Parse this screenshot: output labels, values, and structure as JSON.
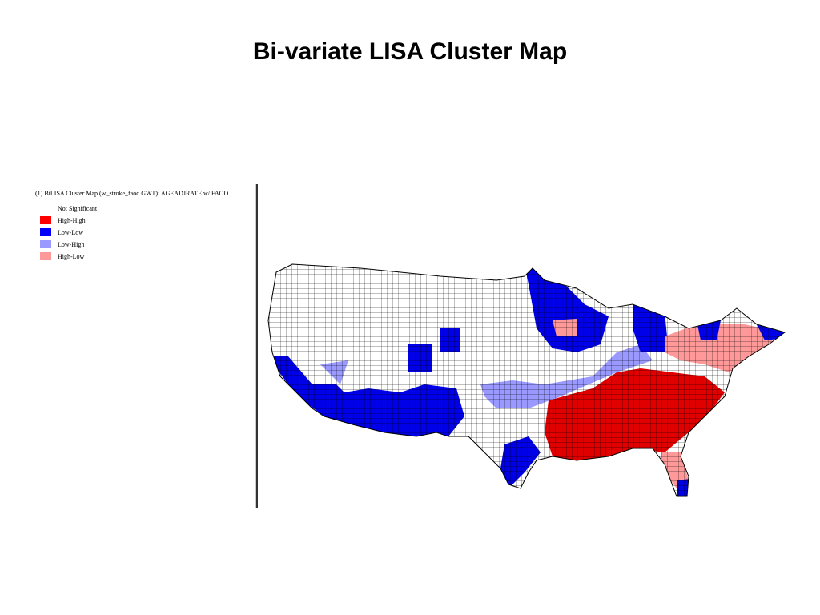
{
  "title": "Bi-variate LISA Cluster Map",
  "legend": {
    "heading": "(1) BiLISA Cluster Map (w_stroke_faod.GWT): AGEADJRATE w/ FAOD",
    "items": [
      {
        "label": "Not Significant",
        "color": "#ffffff"
      },
      {
        "label": "High-High",
        "color": "#ff0000"
      },
      {
        "label": "Low-Low",
        "color": "#0000ff"
      },
      {
        "label": "Low-High",
        "color": "#9999ff"
      },
      {
        "label": "High-Low",
        "color": "#ff9999"
      }
    ]
  }
}
